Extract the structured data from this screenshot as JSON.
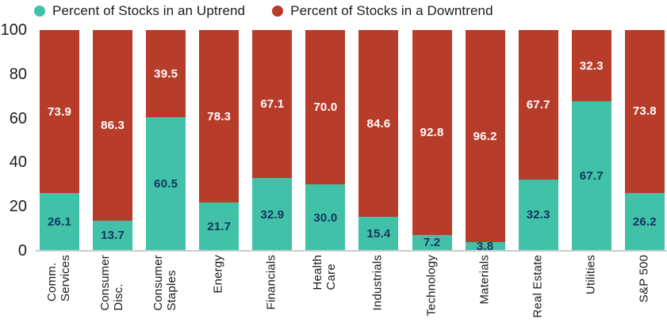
{
  "legend": [
    {
      "label": "Percent of Stocks in an Uptrend",
      "color": "#41c1a8"
    },
    {
      "label": "Percent of Stocks in a Downtrend",
      "color": "#b73c29"
    }
  ],
  "colors": {
    "uptrend": "#41c1a8",
    "downtrend": "#b73c29",
    "uptrend_label_text": "#15365e",
    "downtrend_label_text": "#ffffff",
    "axis_text": "#1c1c1c",
    "baseline": "#cbcbcb"
  },
  "chart_data": {
    "type": "bar",
    "stacked": true,
    "orientation": "vertical",
    "categories": [
      "Comm.\nServices",
      "Consumer\nDisc.",
      "Consumer\nStaples",
      "Energy",
      "Financials",
      "Health\nCare",
      "Industrials",
      "Technology",
      "Materials",
      "Real Estate",
      "Utilities",
      "S&P 500"
    ],
    "series": [
      {
        "name": "Percent of Stocks in an Uptrend",
        "color": "#41c1a8",
        "label_color": "#15365e",
        "values": [
          26.1,
          13.7,
          60.5,
          21.7,
          32.9,
          30.0,
          15.4,
          7.2,
          3.8,
          32.3,
          67.7,
          26.2
        ]
      },
      {
        "name": "Percent of Stocks in a Downtrend",
        "color": "#b73c29",
        "label_color": "#ffffff",
        "values": [
          73.9,
          86.3,
          39.5,
          78.3,
          67.1,
          70.0,
          84.6,
          92.8,
          96.2,
          67.7,
          32.3,
          73.8
        ]
      }
    ],
    "title": "",
    "xlabel": "",
    "ylabel": "",
    "y_ticks": [
      0,
      20,
      40,
      60,
      80,
      100
    ],
    "ylim": [
      0,
      100
    ],
    "grid": false,
    "legend_position": "top",
    "value_labels_decimals": 1
  }
}
